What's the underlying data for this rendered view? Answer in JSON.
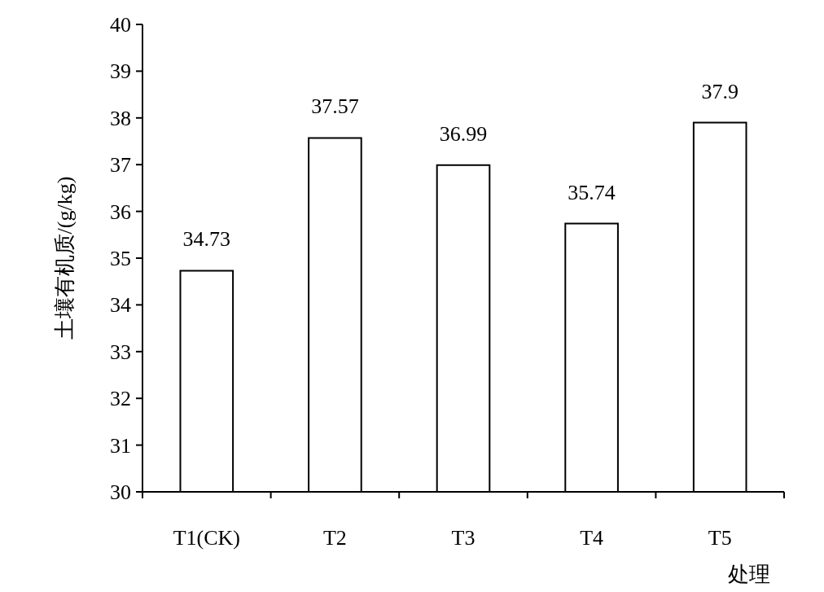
{
  "chart_data": {
    "type": "bar",
    "categories": [
      "T1(CK)",
      "T2",
      "T3",
      "T4",
      "T5"
    ],
    "values": [
      34.73,
      37.57,
      36.99,
      35.74,
      37.9
    ],
    "color": "#ffffff",
    "ylim": [
      30,
      40
    ],
    "yticks": [
      30,
      31,
      32,
      33,
      34,
      35,
      36,
      37,
      38,
      39,
      40
    ],
    "xlabel": "处理",
    "ylabel": "土壤有机质/(g/kg)",
    "data_labels": true,
    "grid": false
  }
}
